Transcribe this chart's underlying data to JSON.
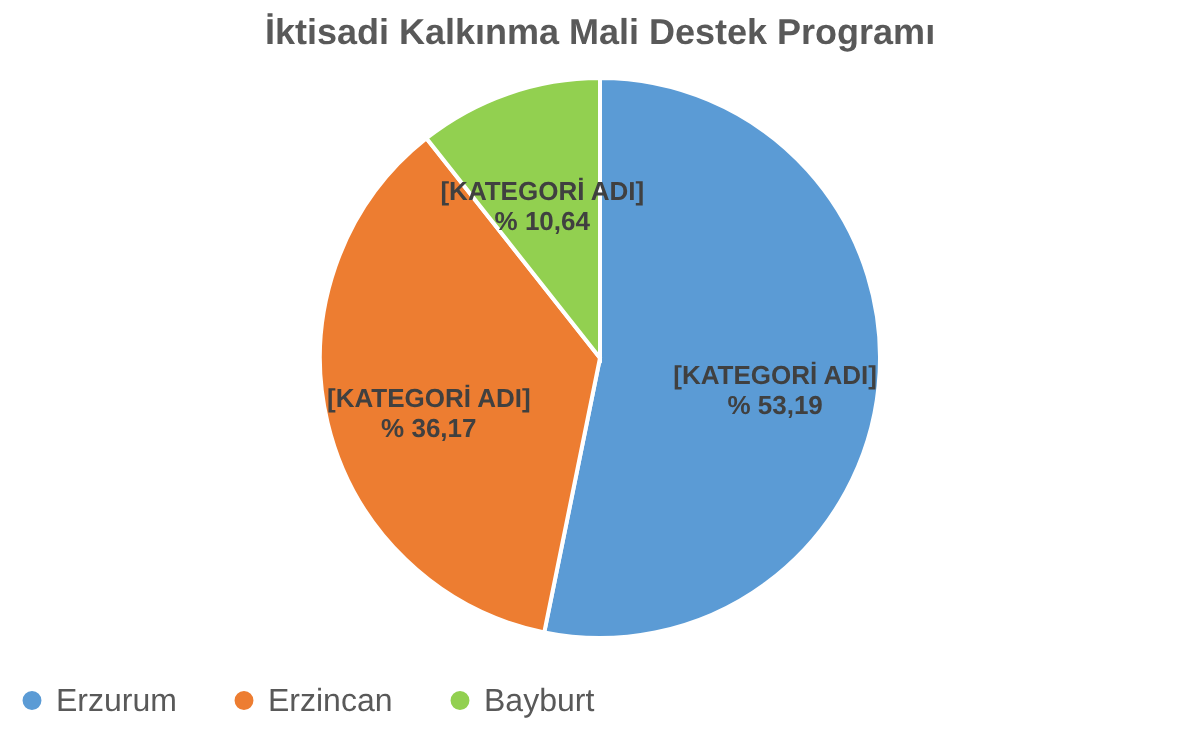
{
  "chart_data": {
    "type": "pie",
    "title": "İktisadi Kalkınma Mali Destek Programı",
    "categories": [
      "Erzurum",
      "Erzincan",
      "Bayburt"
    ],
    "values": [
      53.19,
      36.17,
      10.64
    ],
    "colors": [
      "#5b9bd5",
      "#ed7d31",
      "#92d050"
    ],
    "value_labels": [
      "[KATEGORİ ADI]\n% 53,19",
      "[KATEGORİ ADI]\n% 36,17",
      "[KATEGORİ ADI]\n% 10,64"
    ],
    "legend": "bottom"
  }
}
